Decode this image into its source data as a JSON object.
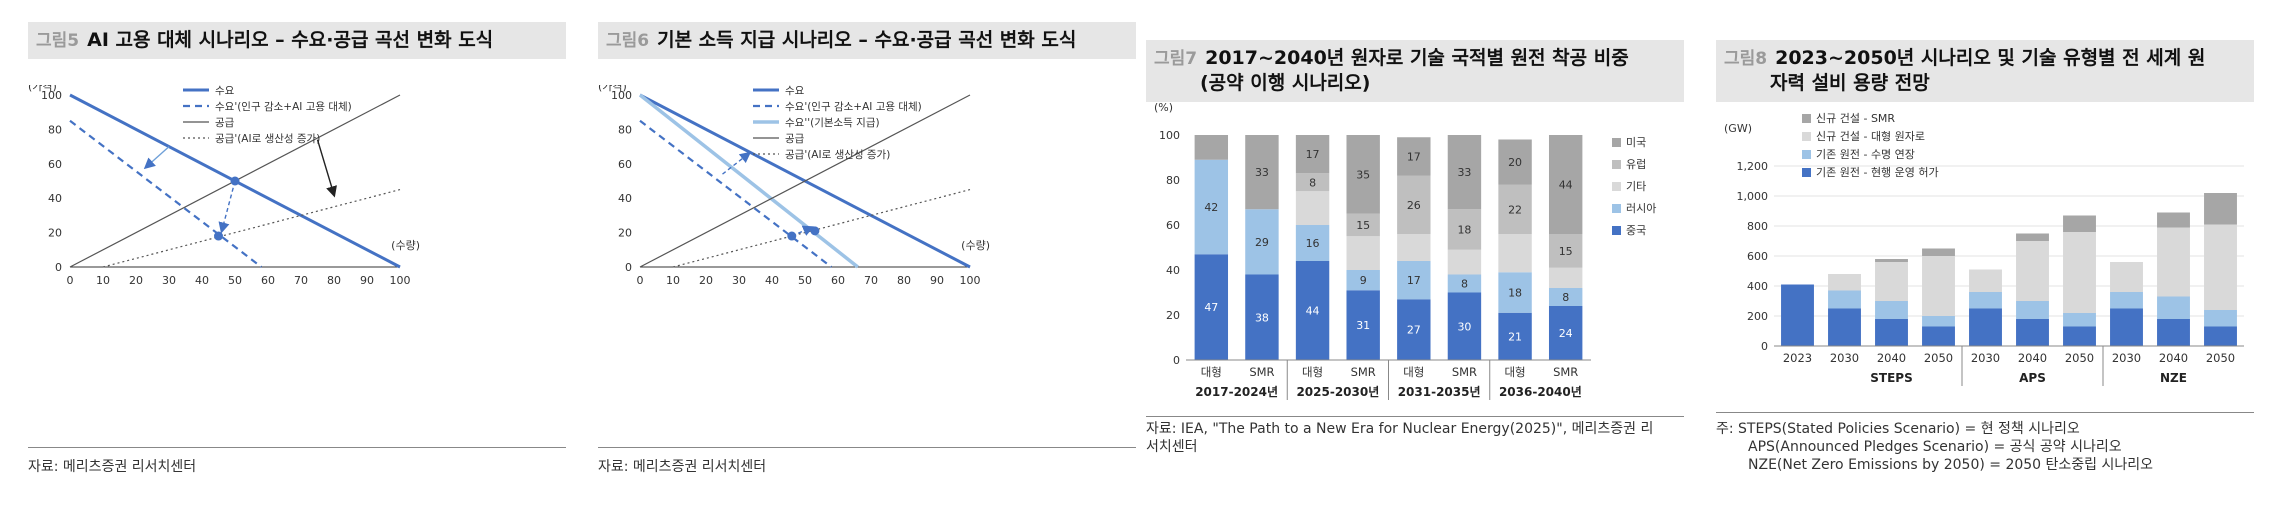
{
  "fig5": {
    "fig": "그림5",
    "title": "AI 고용 대체 시나리오 – 수요·공급 곡선 변화 도식",
    "source": "자료: 메리츠증권 리서치센터",
    "chart_data": {
      "type": "line",
      "ylabel": "(가격)",
      "xlabel": "(수량)",
      "xlim": [
        0,
        100
      ],
      "ylim": [
        0,
        100
      ],
      "x_ticks": [
        0,
        10,
        20,
        30,
        40,
        50,
        60,
        70,
        80,
        90,
        100
      ],
      "y_ticks": [
        0,
        20,
        40,
        60,
        80,
        100
      ],
      "series": [
        {
          "name": "수요",
          "style": "solid-blue-thick",
          "points": [
            [
              0,
              100
            ],
            [
              100,
              0
            ]
          ]
        },
        {
          "name": "수요'(인구 감소+AI 고용 대체)",
          "style": "dashed-blue",
          "points": [
            [
              0,
              85
            ],
            [
              58,
              0
            ]
          ]
        },
        {
          "name": "공급",
          "style": "solid-gray",
          "points": [
            [
              0,
              0
            ],
            [
              100,
              100
            ]
          ]
        },
        {
          "name": "공급'(AI로 생산성 증가)",
          "style": "dotted-gray",
          "points": [
            [
              10,
              0
            ],
            [
              100,
              45
            ]
          ]
        }
      ],
      "markers": [
        [
          50,
          50
        ],
        [
          45,
          18
        ]
      ]
    }
  },
  "fig6": {
    "fig": "그림6",
    "title": "기본 소득 지급 시나리오 – 수요·공급 곡선 변화 도식",
    "source": "자료: 메리츠증권 리서치센터",
    "chart_data": {
      "type": "line",
      "ylabel": "(가격)",
      "xlabel": "(수량)",
      "xlim": [
        0,
        100
      ],
      "ylim": [
        0,
        100
      ],
      "x_ticks": [
        0,
        10,
        20,
        30,
        40,
        50,
        60,
        70,
        80,
        90,
        100
      ],
      "y_ticks": [
        0,
        20,
        40,
        60,
        80,
        100
      ],
      "series": [
        {
          "name": "수요",
          "style": "solid-blue-thick",
          "points": [
            [
              0,
              100
            ],
            [
              100,
              0
            ]
          ]
        },
        {
          "name": "수요'(인구 감소+AI 고용 대체)",
          "style": "dashed-blue",
          "points": [
            [
              0,
              85
            ],
            [
              58,
              0
            ]
          ]
        },
        {
          "name": "수요''(기본소득 지급)",
          "style": "solid-lightblue-thick",
          "points": [
            [
              0,
              100
            ],
            [
              66,
              0
            ]
          ]
        },
        {
          "name": "공급",
          "style": "solid-gray",
          "points": [
            [
              0,
              0
            ],
            [
              100,
              100
            ]
          ]
        },
        {
          "name": "공급'(AI로 생산성 증가)",
          "style": "dotted-gray",
          "points": [
            [
              10,
              0
            ],
            [
              100,
              45
            ]
          ]
        }
      ],
      "markers": [
        [
          46,
          18
        ],
        [
          53,
          21
        ]
      ]
    }
  },
  "fig7": {
    "fig": "그림7",
    "title_line1": "2017~2040년 원자로 기술 국적별 원전 착공 비중",
    "title_line2": "(공약 이행 시나리오)",
    "source_line1": "자료: IEA, \"The Path to a New Era for Nuclear Energy(2025)\", 메리츠증권 리",
    "source_line2": "서치센터",
    "chart_data": {
      "type": "bar",
      "stacked": true,
      "unit": "(%)",
      "ylim": [
        0,
        100
      ],
      "y_ticks": [
        0,
        20,
        40,
        60,
        80,
        100
      ],
      "categories": [
        "대형",
        "SMR",
        "대형",
        "SMR",
        "대형",
        "SMR",
        "대형",
        "SMR"
      ],
      "groups": [
        "2017-2024년",
        "2025-2030년",
        "2031-2035년",
        "2036-2040년"
      ],
      "series": [
        {
          "name": "중국",
          "color": "#4472c4",
          "values": [
            47,
            38,
            44,
            31,
            27,
            30,
            21,
            24
          ]
        },
        {
          "name": "러시아",
          "color": "#9dc3e6",
          "values": [
            42,
            29,
            16,
            9,
            17,
            8,
            18,
            8
          ]
        },
        {
          "name": "기타",
          "color": "#d9d9d9",
          "values": [
            0,
            0,
            15,
            15,
            12,
            11,
            17,
            9
          ]
        },
        {
          "name": "유럽",
          "color": "#bfbfbf",
          "values": [
            0,
            0,
            8,
            10,
            26,
            18,
            22,
            15
          ]
        },
        {
          "name": "미국",
          "color": "#a6a6a6",
          "values": [
            11,
            33,
            17,
            35,
            17,
            33,
            20,
            44
          ]
        }
      ],
      "labels": [
        [
          "47",
          "42",
          null,
          null,
          null
        ],
        [
          "38",
          "29",
          null,
          null,
          "33"
        ],
        [
          "44",
          "16",
          null,
          "8",
          "17"
        ],
        [
          "31",
          "9",
          null,
          "15",
          "35"
        ],
        [
          "27",
          "17",
          null,
          "26",
          "17"
        ],
        [
          "30",
          "8",
          null,
          "18",
          "33"
        ],
        [
          "21",
          "18",
          null,
          "22",
          "20"
        ],
        [
          "24",
          "8",
          null,
          "15",
          "44"
        ]
      ],
      "legend_order": [
        "미국",
        "유럽",
        "기타",
        "러시아",
        "중국"
      ]
    }
  },
  "fig8": {
    "fig": "그림8",
    "title_line1": "2023~2050년 시나리오 및 기술 유형별 전 세계 원",
    "title_line2": "자력 설비 용량 전망",
    "note_line1": "주: STEPS(Stated Policies Scenario) = 현 정책 시나리오",
    "note_line2": "APS(Announced Pledges Scenario) = 공식 공약 시나리오",
    "note_line3": "NZE(Net Zero Emissions by 2050) = 2050 탄소중립 시나리오",
    "chart_data": {
      "type": "bar",
      "stacked": true,
      "unit": "(GW)",
      "ylim": [
        0,
        1200
      ],
      "y_ticks": [
        "0",
        "200",
        "400",
        "600",
        "800",
        "1,000",
        "1,200"
      ],
      "categories": [
        "2023",
        "2030",
        "2040",
        "2050",
        "2030",
        "2040",
        "2050",
        "2030",
        "2040",
        "2050"
      ],
      "groups": [
        "STEPS",
        "APS",
        "NZE"
      ],
      "series": [
        {
          "name": "기존 원전 - 현행 운영 허가",
          "color": "#4472c4",
          "values": [
            410,
            250,
            180,
            130,
            250,
            180,
            130,
            250,
            180,
            130
          ]
        },
        {
          "name": "기존 원전 - 수명 연장",
          "color": "#9dc3e6",
          "values": [
            0,
            120,
            120,
            70,
            110,
            120,
            90,
            110,
            150,
            110
          ]
        },
        {
          "name": "신규 건설 - 대형 원자로",
          "color": "#d9d9d9",
          "values": [
            0,
            110,
            260,
            400,
            150,
            400,
            540,
            200,
            460,
            570
          ]
        },
        {
          "name": "신규 건설 - SMR",
          "color": "#a6a6a6",
          "values": [
            0,
            0,
            20,
            50,
            0,
            50,
            110,
            0,
            100,
            210
          ]
        }
      ],
      "legend_order": [
        "신규 건설 - SMR",
        "신규 건설 - 대형 원자로",
        "기존 원전 - 수명 연장",
        "기존 원전 - 현행 운영 허가"
      ]
    }
  }
}
